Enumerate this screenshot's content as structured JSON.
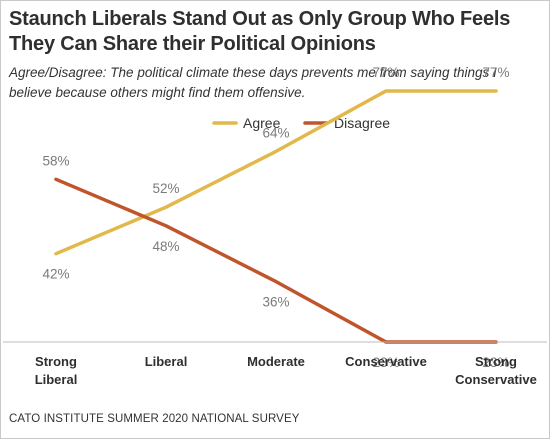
{
  "title": "Staunch Liberals Stand Out as Only Group Who Feels They Can Share their Political Opinions",
  "subtitle": "Agree/Disagree: The political climate these days prevents me from saying things I believe because others might find them offensive.",
  "source": "CATO INSTITUTE SUMMER 2020 NATIONAL SURVEY",
  "colors": {
    "agree": "#e2b84a",
    "disagree": "#c0552b",
    "axis": "#bdbdbd",
    "label": "#7a7a7a"
  },
  "chart_data": {
    "type": "line",
    "categories": [
      [
        "Strong",
        "Liberal"
      ],
      [
        "Liberal"
      ],
      [
        "Moderate"
      ],
      [
        "Conservative"
      ],
      [
        "Strong",
        "Conservative"
      ]
    ],
    "series": [
      {
        "name": "Agree",
        "values": [
          42,
          52,
          64,
          77,
          77
        ],
        "labels": [
          "42%",
          "52%",
          "64%",
          "77%",
          "77%"
        ]
      },
      {
        "name": "Disagree",
        "values": [
          58,
          48,
          36,
          23,
          23
        ],
        "labels": [
          "58%",
          "48%",
          "36%",
          "23%",
          "23%"
        ]
      }
    ],
    "ylim": [
      0,
      100
    ],
    "grid": false,
    "legend_position": "top-center",
    "xlabel": "",
    "ylabel": ""
  }
}
